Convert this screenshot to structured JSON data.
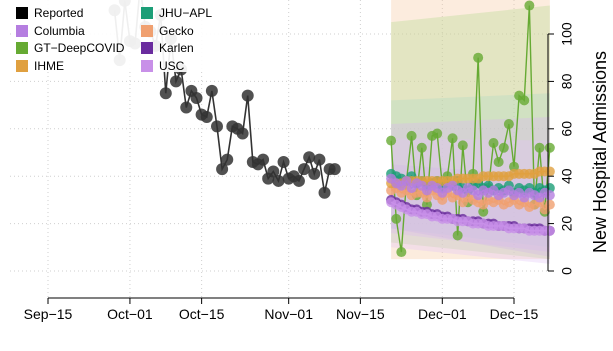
{
  "chart_data": {
    "type": "line",
    "ylabel": "New Hospital Admissions",
    "ylim": [
      0,
      112
    ],
    "x_ticks": [
      {
        "label": "Sep−15",
        "date": "2020-09-15"
      },
      {
        "label": "Oct−01",
        "date": "2020-10-01"
      },
      {
        "label": "Oct−15",
        "date": "2020-10-15"
      },
      {
        "label": "Nov−01",
        "date": "2020-11-01"
      },
      {
        "label": "Nov−15",
        "date": "2020-11-15"
      },
      {
        "label": "Dec−01",
        "date": "2020-12-01"
      },
      {
        "label": "Dec−15",
        "date": "2020-12-15"
      }
    ],
    "y_ticks": [
      0,
      20,
      40,
      60,
      80,
      100
    ],
    "grid": true,
    "legend": {
      "placement": "top-left",
      "entries": [
        {
          "name": "Reported",
          "color": "#000000"
        },
        {
          "name": "JHU−APL",
          "color": "#1b9e77"
        },
        {
          "name": "Columbia",
          "color": "#b57ee0"
        },
        {
          "name": "Gecko",
          "color": "#f0a070"
        },
        {
          "name": "GT−DeepCOVID",
          "color": "#66aa33"
        },
        {
          "name": "Karlen",
          "color": "#6a2c9e"
        },
        {
          "name": "IHME",
          "color": "#e0a040"
        },
        {
          "name": "USC",
          "color": "#c890e8"
        }
      ]
    },
    "series": [
      {
        "name": "Reported",
        "color": "#333333",
        "start": "2020-09-28",
        "values": [
          110,
          89,
          114,
          97,
          96,
          120,
          103,
          101,
          95,
          108,
          75,
          98,
          80,
          85,
          69,
          76,
          73,
          66,
          65,
          76,
          61,
          43,
          47,
          61,
          60,
          58,
          74,
          46,
          45,
          47,
          39,
          42,
          38,
          46,
          39,
          40,
          38,
          43,
          48,
          41,
          47,
          33,
          43,
          43
        ]
      },
      {
        "name": "GT−DeepCOVID",
        "color": "#66aa33",
        "start": "2020-11-21",
        "values": [
          55,
          22,
          8,
          38,
          57,
          32,
          52,
          28,
          57,
          58,
          36,
          40,
          56,
          15,
          53,
          29,
          41,
          90,
          25,
          35,
          54,
          46,
          52,
          62,
          44,
          74,
          72,
          112,
          28,
          52,
          25,
          52
        ]
      },
      {
        "name": "JHU−APL",
        "color": "#1b9e77",
        "start": "2020-11-21",
        "values": [
          41,
          40,
          39,
          38,
          40,
          37,
          38,
          36,
          37,
          38,
          35,
          37,
          36,
          38,
          35,
          34,
          36,
          37,
          35,
          36,
          34,
          35,
          34,
          36,
          33,
          35,
          34,
          35,
          33,
          35,
          34,
          35
        ]
      },
      {
        "name": "Gecko",
        "color": "#f0a070",
        "start": "2020-11-21",
        "values": [
          34,
          35,
          33,
          34,
          32,
          33,
          33,
          31,
          34,
          32,
          30,
          33,
          31,
          32,
          29,
          31,
          30,
          29,
          28,
          30,
          29,
          30,
          28,
          29,
          30,
          28,
          29,
          27,
          28,
          29,
          26,
          28
        ]
      },
      {
        "name": "IHME",
        "color": "#e0a040",
        "start": "2020-11-21",
        "values": [
          37,
          37,
          37,
          38,
          38,
          38,
          38,
          38,
          38,
          38,
          38,
          38,
          38,
          39,
          39,
          39,
          39,
          39,
          40,
          40,
          40,
          40,
          40,
          40,
          41,
          41,
          41,
          41,
          41,
          42,
          42,
          42
        ]
      },
      {
        "name": "Columbia",
        "color": "#b57ee0",
        "start": "2020-11-21",
        "values": [
          39,
          37,
          36,
          38,
          35,
          37,
          36,
          34,
          36,
          35,
          33,
          35,
          36,
          34,
          33,
          35,
          34,
          32,
          34,
          33,
          34,
          32,
          33,
          34,
          32,
          33,
          31,
          33,
          32,
          31,
          33,
          32
        ]
      },
      {
        "name": "Karlen",
        "color": "#6a2c9e",
        "start": "2020-11-21",
        "values": [
          30,
          29,
          28,
          27,
          26,
          26,
          25,
          25,
          24,
          24,
          23,
          23,
          22,
          22,
          22,
          21,
          21,
          21,
          20,
          20,
          20,
          19,
          19,
          19,
          19,
          18,
          18,
          18,
          18,
          18,
          17,
          17
        ]
      },
      {
        "name": "USC",
        "color": "#c890e8",
        "start": "2020-11-21",
        "values": [
          29,
          28,
          27,
          26,
          25,
          25,
          24,
          24,
          23,
          23,
          22,
          22,
          22,
          21,
          21,
          21,
          20,
          20,
          20,
          19,
          19,
          19,
          19,
          18,
          18,
          18,
          18,
          17,
          17,
          17,
          17,
          17
        ]
      }
    ],
    "intervals": [
      {
        "name": "Gecko",
        "color": "#f7c8a0",
        "opacity": 0.35,
        "lower": [
          5,
          5
        ],
        "upper": [
          150,
          150
        ]
      },
      {
        "name": "GT−DeepCOVID",
        "color": "#b5d98e",
        "opacity": 0.35,
        "lower": [
          12,
          5
        ],
        "upper": [
          105,
          112
        ]
      },
      {
        "name": "JHU−APL",
        "color": "#a8d8c4",
        "opacity": 0.3,
        "lower": [
          18,
          10
        ],
        "upper": [
          72,
          75
        ]
      },
      {
        "name": "Columbia",
        "color": "#d9b8f0",
        "opacity": 0.35,
        "lower": [
          16,
          8
        ],
        "upper": [
          62,
          65
        ]
      },
      {
        "name": "Karlen",
        "color": "#c6a8e0",
        "opacity": 0.3,
        "lower": [
          18,
          6
        ],
        "upper": [
          45,
          40
        ]
      },
      {
        "name": "USC",
        "color": "#e3c6f5",
        "opacity": 0.35,
        "lower": [
          10,
          3
        ],
        "upper": [
          56,
          55
        ]
      }
    ]
  }
}
